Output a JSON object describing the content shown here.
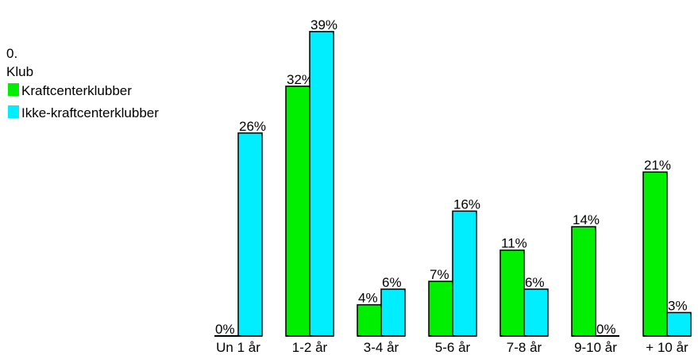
{
  "chart_data": {
    "type": "bar",
    "legend": {
      "lines": [
        "0.",
        "Klub"
      ],
      "placement": "top-left"
    },
    "categories": [
      "Un 1 år",
      "1-2 år",
      "3-4 år",
      "5-6 år",
      "7-8 år",
      "9-10 år",
      "+ 10 år"
    ],
    "series": [
      {
        "name": "Kraftcenterklubber",
        "color": "#00ee00",
        "values": [
          0,
          32,
          4,
          7,
          11,
          14,
          21
        ],
        "labels": [
          "0%",
          "32%",
          "4%",
          "7%",
          "11%",
          "14%",
          "21%"
        ]
      },
      {
        "name": "Ikke-kraftcenterklubber",
        "color": "#00eeff",
        "values": [
          26,
          39,
          6,
          16,
          6,
          0,
          3
        ],
        "labels": [
          "26%",
          "39%",
          "6%",
          "16%",
          "6%",
          "0%",
          "3%"
        ]
      }
    ],
    "unit": "%",
    "ylim": [
      0,
      39
    ],
    "grid": false
  }
}
